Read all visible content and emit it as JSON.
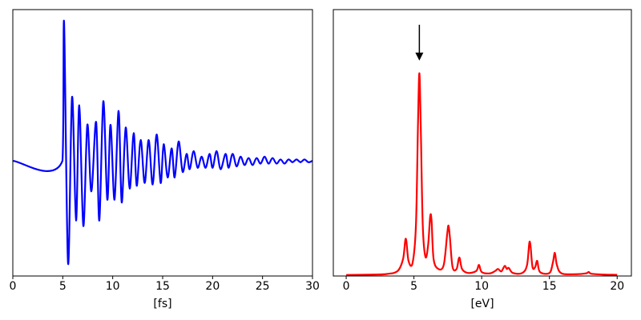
{
  "chart_data": [
    {
      "type": "line",
      "xlabel": "[fs]",
      "color": "#0000ff",
      "xlim": [
        0,
        30
      ],
      "xticks": [
        0,
        5,
        10,
        15,
        20,
        25,
        30
      ],
      "ylim": [
        -0.83,
        1.09
      ],
      "x": [
        0,
        4.97,
        5.13,
        5.53,
        5.93,
        6.33,
        6.65,
        7.06,
        7.46,
        7.86,
        8.34,
        8.66,
        9.06,
        9.46,
        9.78,
        10.18,
        10.59,
        10.9,
        11.3,
        11.7,
        12.1,
        12.4,
        12.8,
        13.2,
        13.6,
        14.0,
        14.4,
        14.8,
        15.1,
        15.5,
        15.9,
        16.2,
        16.6,
        17.0,
        17.4,
        17.7,
        18.1,
        18.5,
        18.9,
        19.3,
        19.7,
        20.0,
        20.4,
        20.8,
        21.3,
        21.6,
        22.0,
        22.4,
        22.8,
        23.2,
        23.6,
        24.0,
        24.4,
        24.8,
        25.2,
        25.6,
        26.0,
        26.4,
        26.8,
        27.2,
        27.6,
        28.0,
        28.4,
        28.8,
        29.2,
        29.6,
        30
      ],
      "values": [
        0,
        0,
        1.0,
        -0.74,
        0.46,
        -0.43,
        0.4,
        -0.47,
        0.26,
        -0.22,
        0.28,
        -0.43,
        0.43,
        -0.28,
        0.26,
        -0.28,
        0.36,
        -0.3,
        0.24,
        -0.2,
        0.2,
        -0.18,
        0.15,
        -0.16,
        0.15,
        -0.17,
        0.19,
        -0.16,
        0.12,
        -0.12,
        0.09,
        -0.12,
        0.14,
        -0.08,
        0.05,
        -0.06,
        0.07,
        -0.05,
        0.03,
        -0.05,
        0.05,
        -0.05,
        0.07,
        -0.06,
        0.05,
        -0.05,
        0.05,
        -0.04,
        0.03,
        -0.03,
        0.02,
        -0.03,
        0.02,
        -0.02,
        0.03,
        -0.02,
        0.02,
        -0.02,
        0.01,
        -0.02,
        0.01,
        -0.01,
        0.01,
        -0.01,
        0.01,
        -0.01,
        0
      ]
    },
    {
      "type": "line",
      "xlabel": "[eV]",
      "color": "#ff0000",
      "xlim": [
        -0.95,
        21.05
      ],
      "xticks": [
        0,
        5,
        10,
        15,
        20
      ],
      "ylim": [
        -0.005,
        1.315
      ],
      "x": [
        0,
        2,
        3,
        3.8,
        4.2,
        4.4,
        4.6,
        4.9,
        5.15,
        5.3,
        5.4,
        5.5,
        5.65,
        5.85,
        6.05,
        6.2,
        6.3,
        6.45,
        6.8,
        7.2,
        7.45,
        7.55,
        7.65,
        7.85,
        8.15,
        8.35,
        8.55,
        9.0,
        9.6,
        9.8,
        10.0,
        10.6,
        11.0,
        11.2,
        11.45,
        11.7,
        11.85,
        12.0,
        12.3,
        13.0,
        13.35,
        13.55,
        13.75,
        13.95,
        14.1,
        14.3,
        15.0,
        15.25,
        15.4,
        15.55,
        15.9,
        17.0,
        17.7,
        17.9,
        18.1,
        19,
        20
      ],
      "values": [
        0,
        0.002,
        0.005,
        0.02,
        0.08,
        0.18,
        0.07,
        0.06,
        0.25,
        0.75,
        1.0,
        0.75,
        0.25,
        0.09,
        0.15,
        0.29,
        0.27,
        0.08,
        0.03,
        0.05,
        0.2,
        0.245,
        0.19,
        0.04,
        0.03,
        0.087,
        0.03,
        0.01,
        0.02,
        0.05,
        0.015,
        0.008,
        0.02,
        0.03,
        0.018,
        0.045,
        0.03,
        0.035,
        0.01,
        0.01,
        0.05,
        0.166,
        0.04,
        0.04,
        0.07,
        0.015,
        0.01,
        0.06,
        0.11,
        0.05,
        0.008,
        0.004,
        0.008,
        0.015,
        0.006,
        0.002,
        0.001
      ],
      "arrow": {
        "x": 5.4,
        "y_start": 1.24,
        "y_end": 1.07
      }
    }
  ]
}
